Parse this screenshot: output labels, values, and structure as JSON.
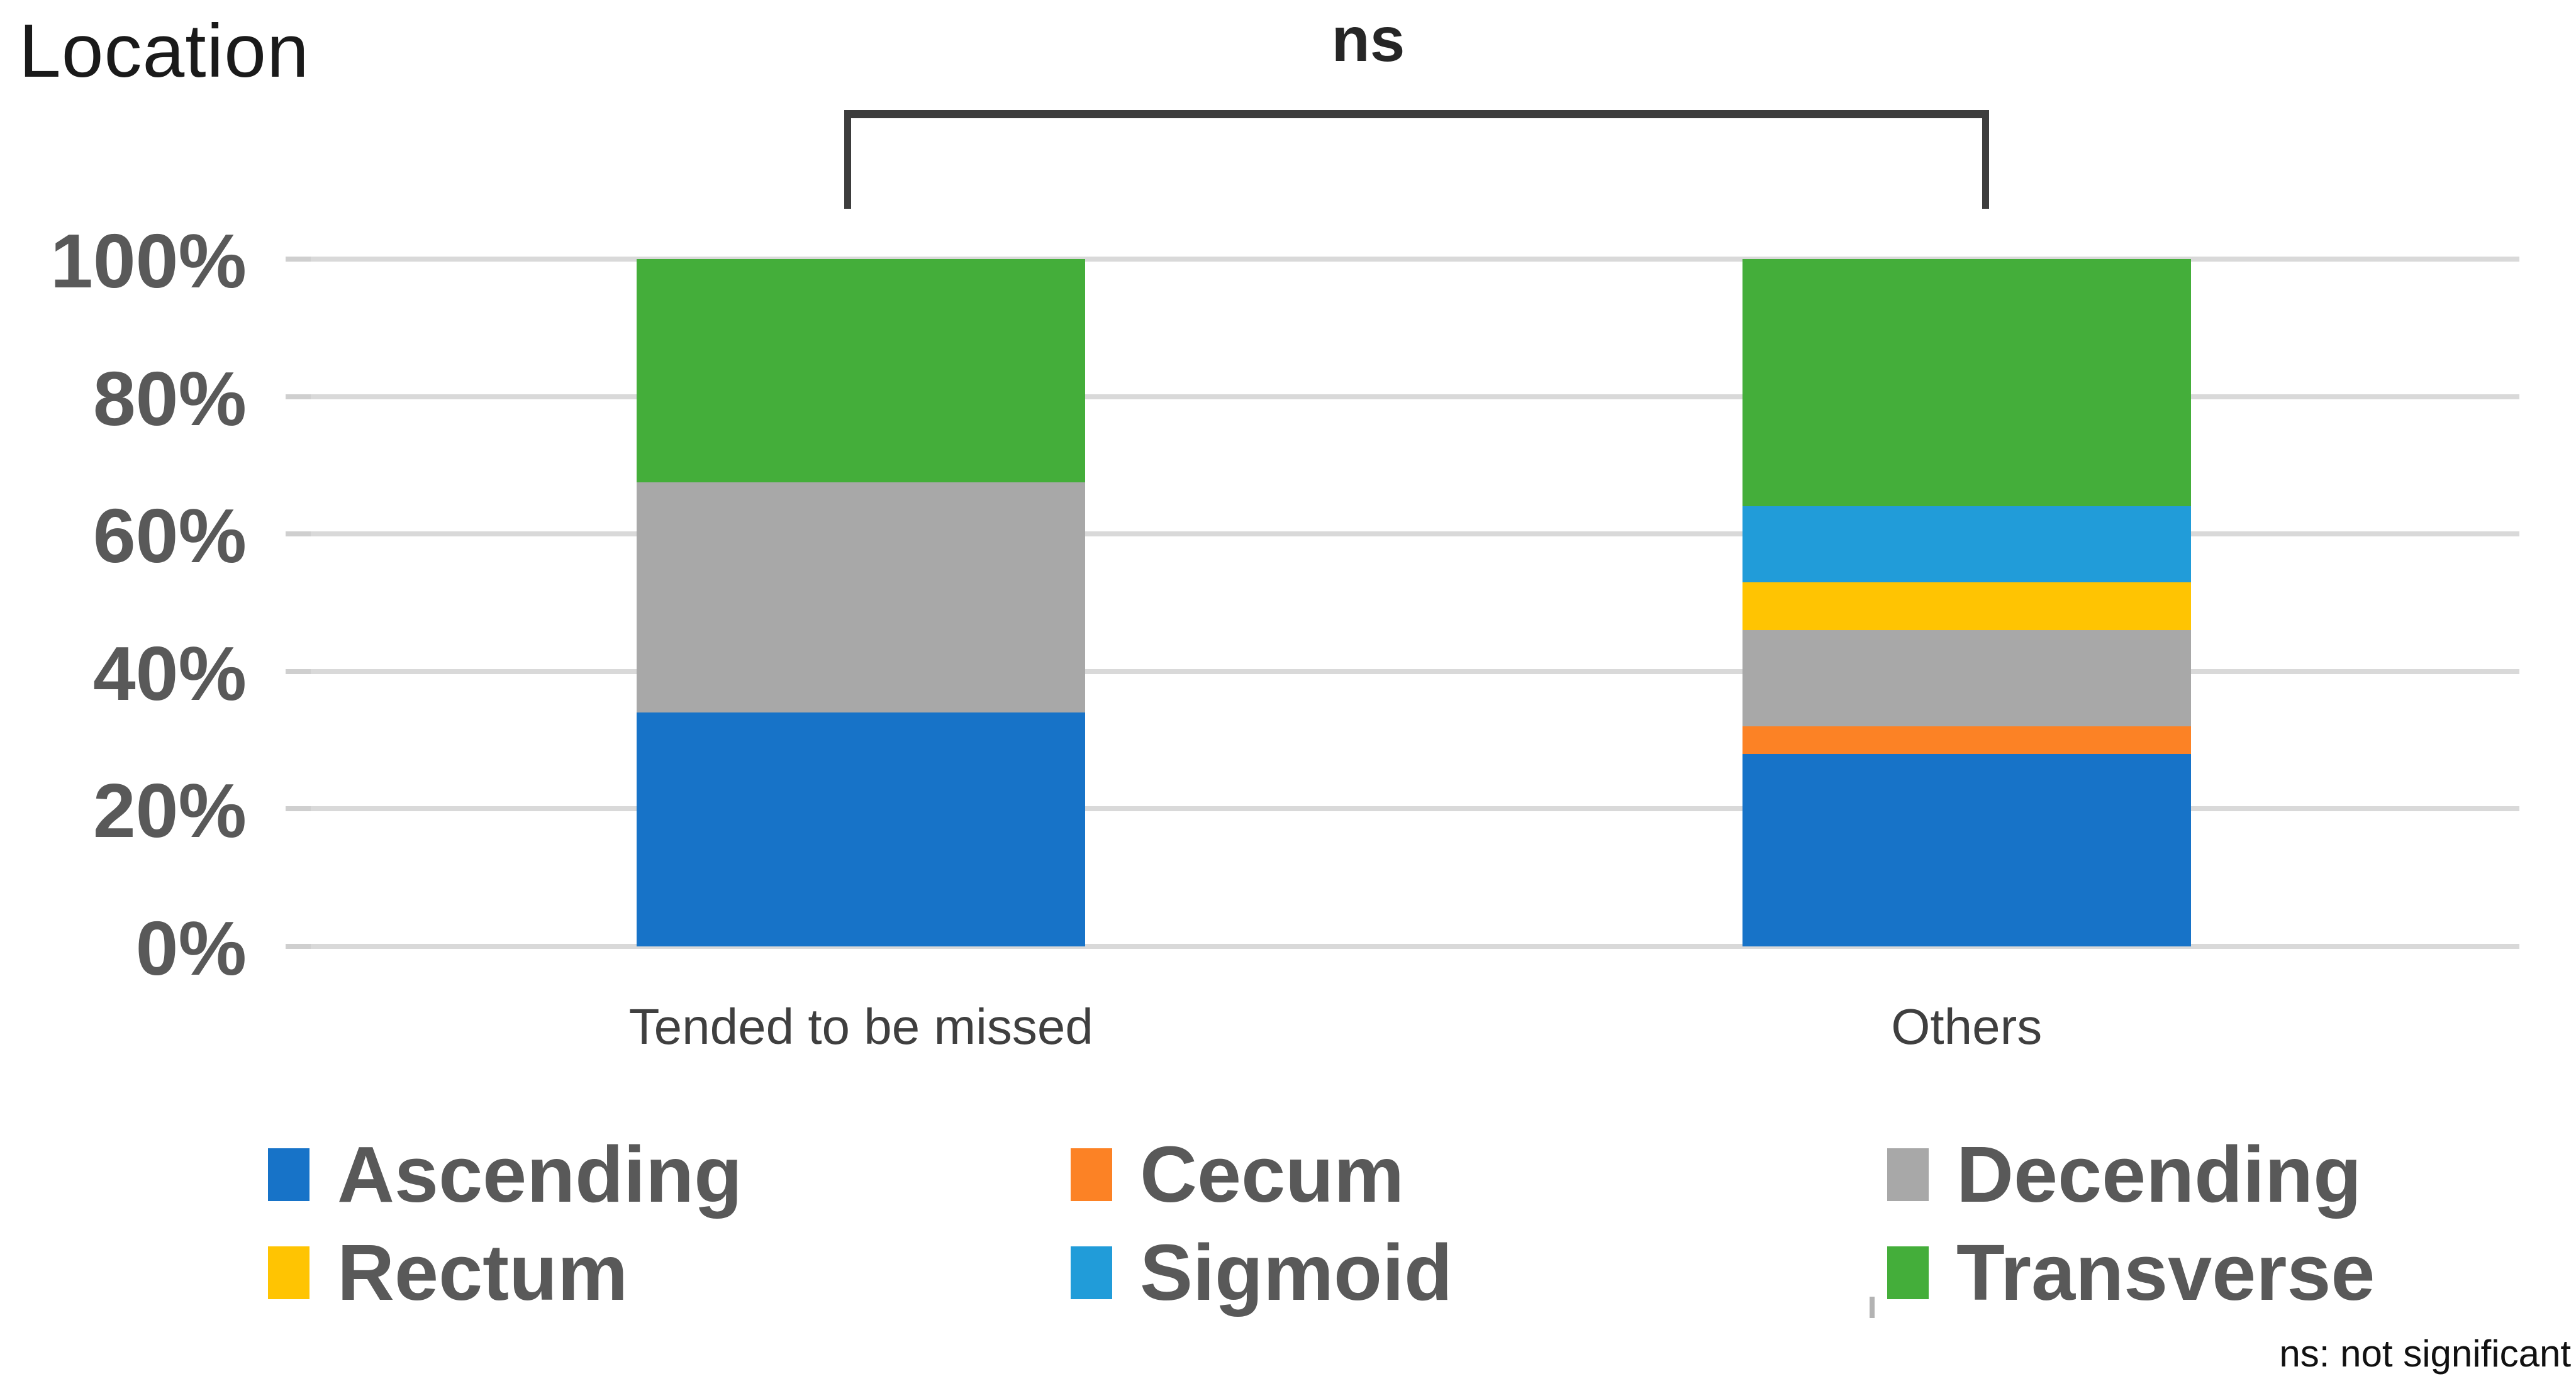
{
  "title": "Location",
  "significance": {
    "label": "ns",
    "note": "ns: not significant"
  },
  "y_axis": {
    "tick_labels": [
      "100%",
      "80%",
      "60%",
      "40%",
      "20%",
      "0%"
    ]
  },
  "chart_data": {
    "type": "bar",
    "stacked": true,
    "unit": "percent",
    "title": "Location",
    "categories": [
      "Tended to be missed",
      "Others"
    ],
    "series": [
      {
        "name": "Ascending",
        "color": "#1773C8",
        "values": [
          34.0,
          28.0
        ]
      },
      {
        "name": "Cecum",
        "color": "#FC8225",
        "values": [
          0.0,
          4.0
        ]
      },
      {
        "name": "Decending",
        "color": "#A8A8A8",
        "values": [
          33.5,
          14.0
        ]
      },
      {
        "name": "Rectum",
        "color": "#FFC402",
        "values": [
          0.0,
          7.0
        ]
      },
      {
        "name": "Sigmoid",
        "color": "#219CD9",
        "values": [
          0.0,
          11.0
        ]
      },
      {
        "name": "Transverse",
        "color": "#44AE3A",
        "values": [
          32.5,
          36.0
        ]
      }
    ],
    "ylim": [
      0,
      100
    ],
    "grid": true,
    "legend_position": "bottom",
    "annotation": "ns bracket between the two bars (not significant)"
  }
}
